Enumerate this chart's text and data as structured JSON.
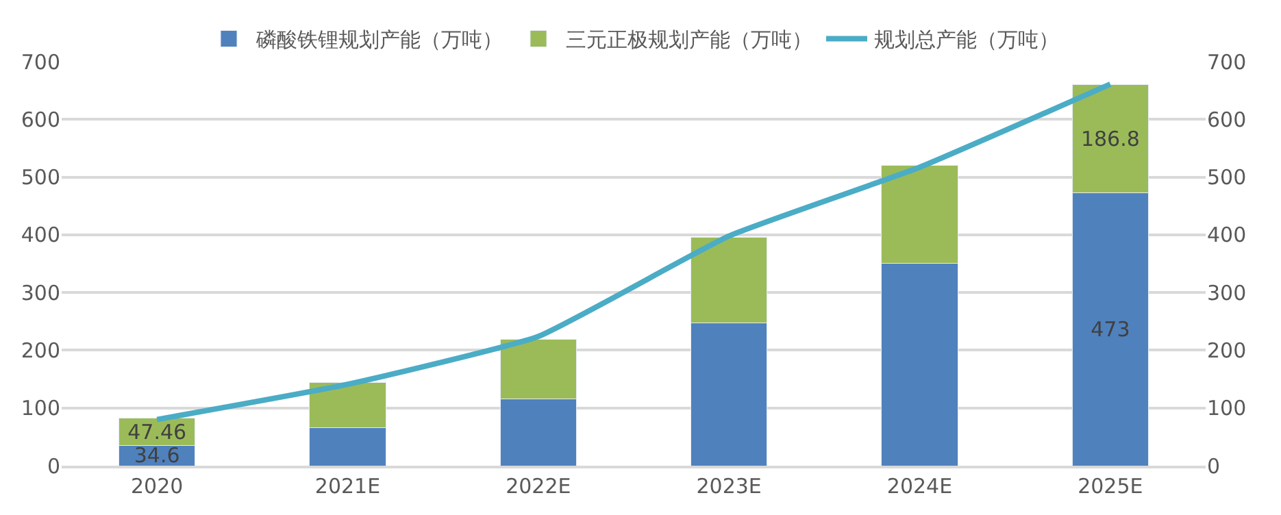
{
  "chart_data": {
    "type": "bar",
    "stacked": true,
    "categories": [
      "2020",
      "2021E",
      "2022E",
      "2023E",
      "2024E",
      "2025E"
    ],
    "series": [
      {
        "name": "磷酸铁锂规划产能（万吨）",
        "color": "#4f81bd",
        "values": [
          34.6,
          66,
          116,
          247,
          351,
          473
        ],
        "value_labels": [
          "34.6",
          null,
          null,
          null,
          null,
          "473"
        ]
      },
      {
        "name": "三元正极规划产能（万吨）",
        "color": "#9bbb59",
        "values": [
          47.46,
          78,
          103,
          149,
          169,
          186.8
        ],
        "value_labels": [
          "47.46",
          null,
          null,
          null,
          null,
          "186.8"
        ]
      },
      {
        "name": "规划总产能（万吨）",
        "color": "#4bacc6",
        "type": "line",
        "axis": "y2",
        "marker": "none",
        "values": [
          80,
          141,
          224,
          398,
          517,
          661
        ]
      }
    ],
    "ylim": [
      0,
      700
    ],
    "yticks": [
      0,
      100,
      200,
      300,
      400,
      500,
      600,
      700
    ],
    "y2lim": [
      0,
      700
    ],
    "y2ticks": [
      0,
      100,
      200,
      300,
      400,
      500,
      600,
      700
    ],
    "grid": "y",
    "legend": "top"
  }
}
